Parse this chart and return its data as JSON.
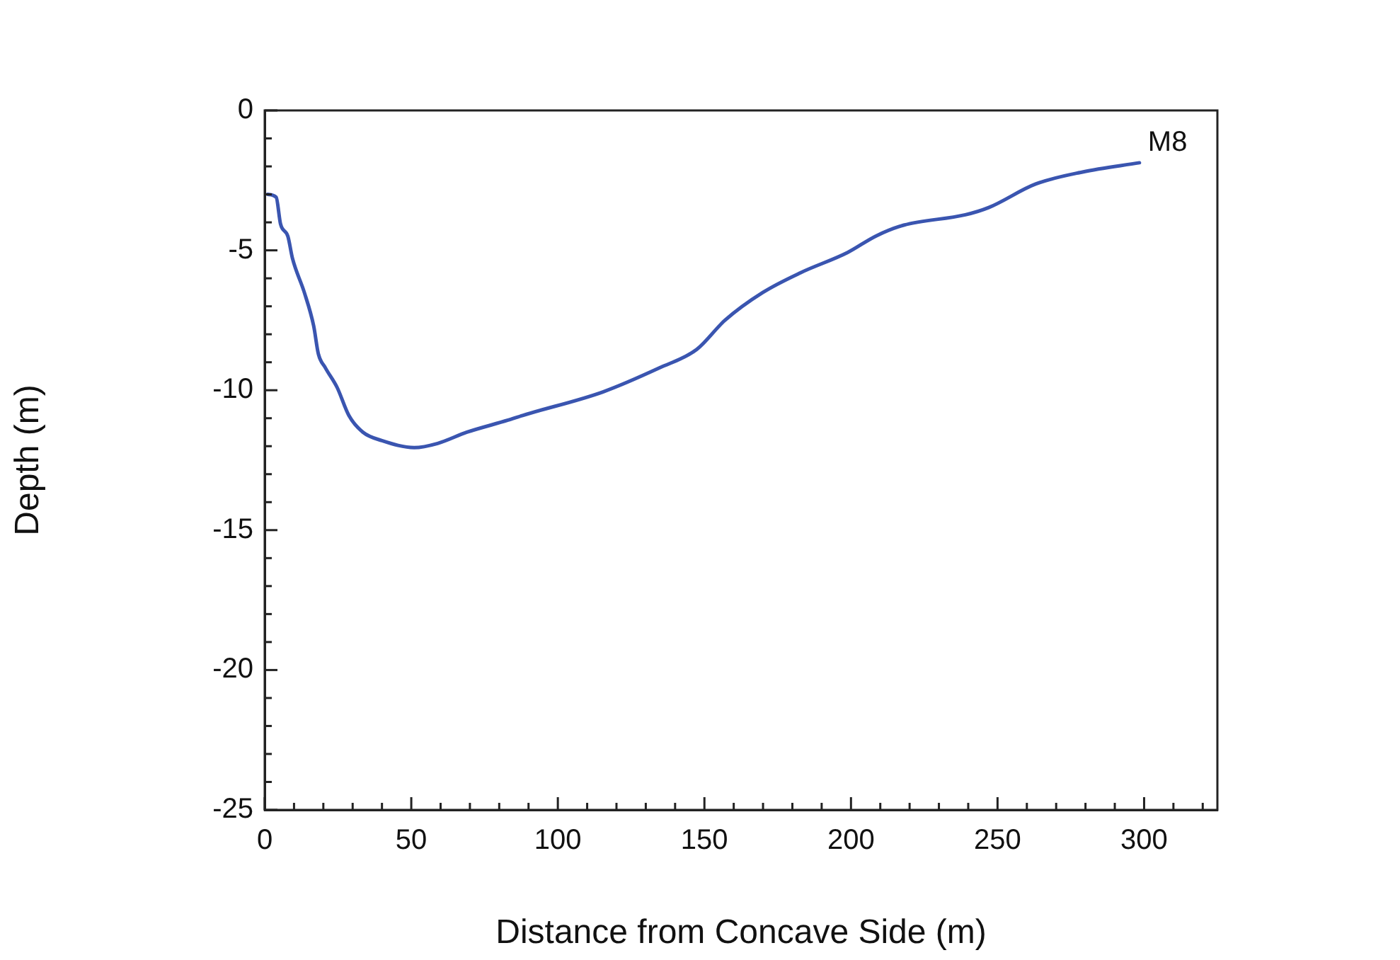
{
  "chart_data": {
    "type": "line",
    "xlabel": "Distance from Concave Side (m)",
    "ylabel": "Depth (m)",
    "xlim": [
      0,
      325
    ],
    "ylim": [
      -25,
      0
    ],
    "xticks": [
      0,
      {
        "value": 10,
        "label": null
      },
      {
        "value": 20,
        "label": null
      },
      {
        "value": 30,
        "label": null
      },
      {
        "value": 40,
        "label": null
      },
      50,
      {
        "value": 60,
        "label": null
      },
      {
        "value": 70,
        "label": null
      },
      {
        "value": 80,
        "label": null
      },
      {
        "value": 90,
        "label": null
      },
      100,
      {
        "value": 110,
        "label": null
      },
      {
        "value": 120,
        "label": null
      },
      {
        "value": 130,
        "label": null
      },
      {
        "value": 140,
        "label": null
      },
      150,
      {
        "value": 160,
        "label": null
      },
      {
        "value": 170,
        "label": null
      },
      {
        "value": 180,
        "label": null
      },
      {
        "value": 190,
        "label": null
      },
      200,
      {
        "value": 210,
        "label": null
      },
      {
        "value": 220,
        "label": null
      },
      {
        "value": 230,
        "label": null
      },
      {
        "value": 240,
        "label": null
      },
      250,
      {
        "value": 260,
        "label": null
      },
      {
        "value": 270,
        "label": null
      },
      {
        "value": 280,
        "label": null
      },
      {
        "value": 290,
        "label": null
      },
      300,
      {
        "value": 310,
        "label": null
      },
      {
        "value": 320,
        "label": null
      }
    ],
    "yticks": [
      -25,
      {
        "value": -24,
        "label": null
      },
      {
        "value": -23,
        "label": null
      },
      {
        "value": -22,
        "label": null
      },
      {
        "value": -21,
        "label": null
      },
      -20,
      {
        "value": -19,
        "label": null
      },
      {
        "value": -18,
        "label": null
      },
      {
        "value": -17,
        "label": null
      },
      {
        "value": -16,
        "label": null
      },
      -15,
      {
        "value": -14,
        "label": null
      },
      {
        "value": -13,
        "label": null
      },
      {
        "value": -12,
        "label": null
      },
      {
        "value": -11,
        "label": null
      },
      -10,
      {
        "value": -9,
        "label": null
      },
      {
        "value": -8,
        "label": null
      },
      {
        "value": -7,
        "label": null
      },
      {
        "value": -6,
        "label": null
      },
      -5,
      {
        "value": -4,
        "label": null
      },
      {
        "value": -3,
        "label": null
      },
      {
        "value": -2,
        "label": null
      },
      {
        "value": -1,
        "label": null
      },
      0
    ],
    "grid": false,
    "legend": false,
    "marker": "none",
    "line_style": "solid",
    "series": [
      {
        "name": "M8",
        "color": "#3a55b0",
        "x": [
          1,
          3.9,
          5.4,
          7.9,
          9.5,
          13.5,
          16.7,
          18.3,
          20.7,
          24.7,
          28.7,
          33.5,
          40,
          51,
          59,
          69,
          83,
          88,
          115.4,
          134.7,
          147.4,
          157,
          170,
          182.8,
          198.8,
          208.5,
          218,
          239,
          247,
          263,
          279,
          298.4
        ],
        "values": [
          -3.0,
          -3.1,
          -4.06,
          -4.5,
          -5.3,
          -6.5,
          -7.7,
          -8.7,
          -9.2,
          -9.9,
          -10.9,
          -11.5,
          -11.8,
          -12.05,
          -11.9,
          -11.5,
          -11.07,
          -10.9,
          -10.06,
          -9.2,
          -8.54,
          -7.5,
          -6.5,
          -5.8,
          -5.08,
          -4.49,
          -4.1,
          -3.73,
          -3.47,
          -2.63,
          -2.2,
          -1.87
        ]
      }
    ]
  }
}
